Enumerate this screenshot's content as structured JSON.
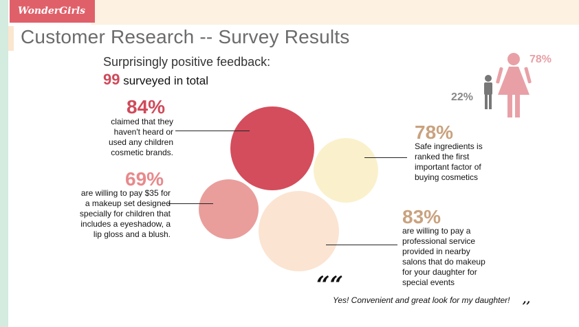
{
  "brand": {
    "logo_text": "WonderGirls"
  },
  "header": {
    "title": "Customer Research -- Survey Results"
  },
  "summary": {
    "subtitle": "Surprisingly positive feedback:",
    "total_number": "99",
    "total_text": "surveyed in total"
  },
  "gender": {
    "female_pct": "78%",
    "male_pct": "22%"
  },
  "stats": [
    {
      "pct": "84%",
      "color": "#cf4a5a",
      "lines": [
        "claimed that they",
        "haven't heard or",
        "used any children",
        "cosmetic brands."
      ]
    },
    {
      "pct": "78%",
      "color": "#c9a27e",
      "lines": [
        "Safe ingredients is",
        "ranked the first",
        "important factor of",
        "buying cosmetics"
      ]
    },
    {
      "pct": "69%",
      "color": "#e8898b",
      "lines": [
        "are willing to pay $35 for",
        "a makeup set designed",
        "specially for children that",
        "includes a eyeshadow, a",
        "lip gloss and a blush."
      ]
    },
    {
      "pct": "83%",
      "color": "#c9a27e",
      "lines": [
        "are willing to pay a",
        "professional service",
        "provided in nearby",
        "salons that do makeup",
        "for your daughter for",
        "special events"
      ]
    }
  ],
  "colors": {
    "red_circle": "#d44d5c",
    "cream_circle": "#faf1cc",
    "pink_circle": "#e99e9c",
    "peach_circle": "#fbe4d2",
    "accent": "#e0606a"
  },
  "quote": {
    "open": "““",
    "text": "Yes! Convenient and great look for my daughter!",
    "close": ",,"
  }
}
